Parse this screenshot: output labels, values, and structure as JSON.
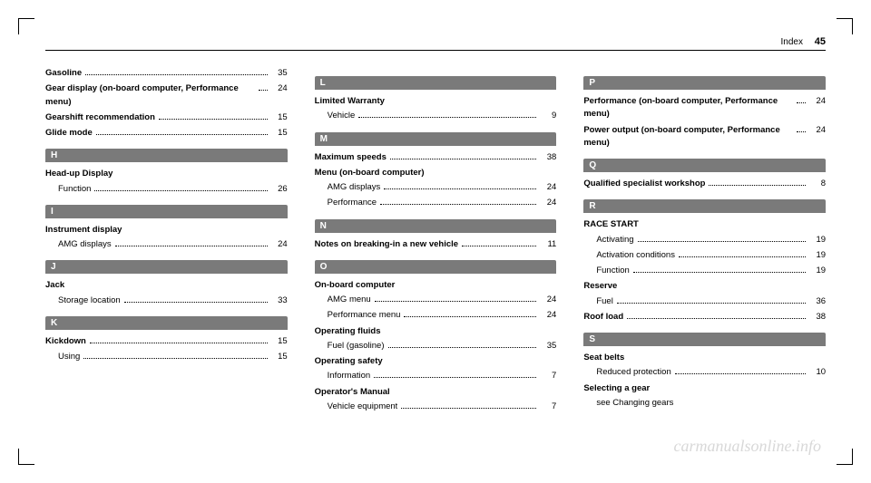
{
  "header": {
    "title": "Index",
    "page": "45"
  },
  "watermark": "carmanualsonline.info",
  "columns": [
    {
      "items": [
        {
          "type": "entry",
          "bold": true,
          "label": "Gasoline",
          "page": "35"
        },
        {
          "type": "entry",
          "bold": true,
          "label": "Gear display (on-board computer, Performance menu)",
          "page": "24"
        },
        {
          "type": "entry",
          "bold": true,
          "label": "Gearshift recommendation",
          "page": "15"
        },
        {
          "type": "entry",
          "bold": true,
          "label": "Glide mode",
          "page": "15"
        },
        {
          "type": "header",
          "letter": "H"
        },
        {
          "type": "group-title",
          "label": "Head-up Display"
        },
        {
          "type": "sub",
          "label": "Function",
          "page": "26"
        },
        {
          "type": "header",
          "letter": "I"
        },
        {
          "type": "group-title",
          "label": "Instrument display"
        },
        {
          "type": "sub",
          "label": "AMG displays",
          "page": "24"
        },
        {
          "type": "header",
          "letter": "J"
        },
        {
          "type": "group-title",
          "label": "Jack"
        },
        {
          "type": "sub",
          "label": "Storage location",
          "page": "33"
        },
        {
          "type": "header",
          "letter": "K"
        },
        {
          "type": "entry",
          "bold": true,
          "label": "Kickdown",
          "page": "15"
        },
        {
          "type": "sub",
          "label": "Using",
          "page": "15"
        }
      ]
    },
    {
      "items": [
        {
          "type": "header",
          "letter": "L"
        },
        {
          "type": "group-title",
          "label": "Limited Warranty"
        },
        {
          "type": "sub",
          "label": "Vehicle",
          "page": "9"
        },
        {
          "type": "header",
          "letter": "M"
        },
        {
          "type": "entry",
          "bold": true,
          "label": "Maximum speeds",
          "page": "38"
        },
        {
          "type": "group-title",
          "label": "Menu (on-board computer)"
        },
        {
          "type": "sub",
          "label": "AMG displays",
          "page": "24"
        },
        {
          "type": "sub",
          "label": "Performance",
          "page": "24"
        },
        {
          "type": "header",
          "letter": "N"
        },
        {
          "type": "entry",
          "bold": true,
          "label": "Notes on breaking-in a new vehicle",
          "page": "11"
        },
        {
          "type": "header",
          "letter": "O"
        },
        {
          "type": "group-title",
          "label": "On-board computer"
        },
        {
          "type": "sub",
          "label": "AMG menu",
          "page": "24"
        },
        {
          "type": "sub",
          "label": "Performance menu",
          "page": "24"
        },
        {
          "type": "group-title",
          "label": "Operating fluids"
        },
        {
          "type": "sub",
          "label": "Fuel (gasoline)",
          "page": "35"
        },
        {
          "type": "group-title",
          "label": "Operating safety"
        },
        {
          "type": "sub",
          "label": "Information",
          "page": "7"
        },
        {
          "type": "group-title",
          "label": "Operator's Manual"
        },
        {
          "type": "sub",
          "label": "Vehicle equipment",
          "page": "7"
        }
      ]
    },
    {
      "items": [
        {
          "type": "header",
          "letter": "P"
        },
        {
          "type": "entry",
          "bold": true,
          "label": "Performance (on-board computer, Performance menu)",
          "page": "24"
        },
        {
          "type": "entry",
          "bold": true,
          "label": "Power output (on-board computer, Performance menu)",
          "page": "24"
        },
        {
          "type": "header",
          "letter": "Q"
        },
        {
          "type": "entry",
          "bold": true,
          "label": "Qualified specialist workshop",
          "page": "8"
        },
        {
          "type": "header",
          "letter": "R"
        },
        {
          "type": "group-title",
          "label": "RACE START"
        },
        {
          "type": "sub",
          "label": "Activating",
          "page": "19"
        },
        {
          "type": "sub",
          "label": "Activation conditions",
          "page": "19"
        },
        {
          "type": "sub",
          "label": "Function",
          "page": "19"
        },
        {
          "type": "group-title",
          "label": "Reserve"
        },
        {
          "type": "sub",
          "label": "Fuel",
          "page": "36"
        },
        {
          "type": "entry",
          "bold": true,
          "label": "Roof load",
          "page": "38"
        },
        {
          "type": "header",
          "letter": "S"
        },
        {
          "type": "group-title",
          "label": "Seat belts"
        },
        {
          "type": "sub",
          "label": "Reduced protection",
          "page": "10"
        },
        {
          "type": "group-title",
          "label": "Selecting a gear"
        },
        {
          "type": "sub-nopage",
          "label": "see Changing gears"
        }
      ]
    }
  ]
}
